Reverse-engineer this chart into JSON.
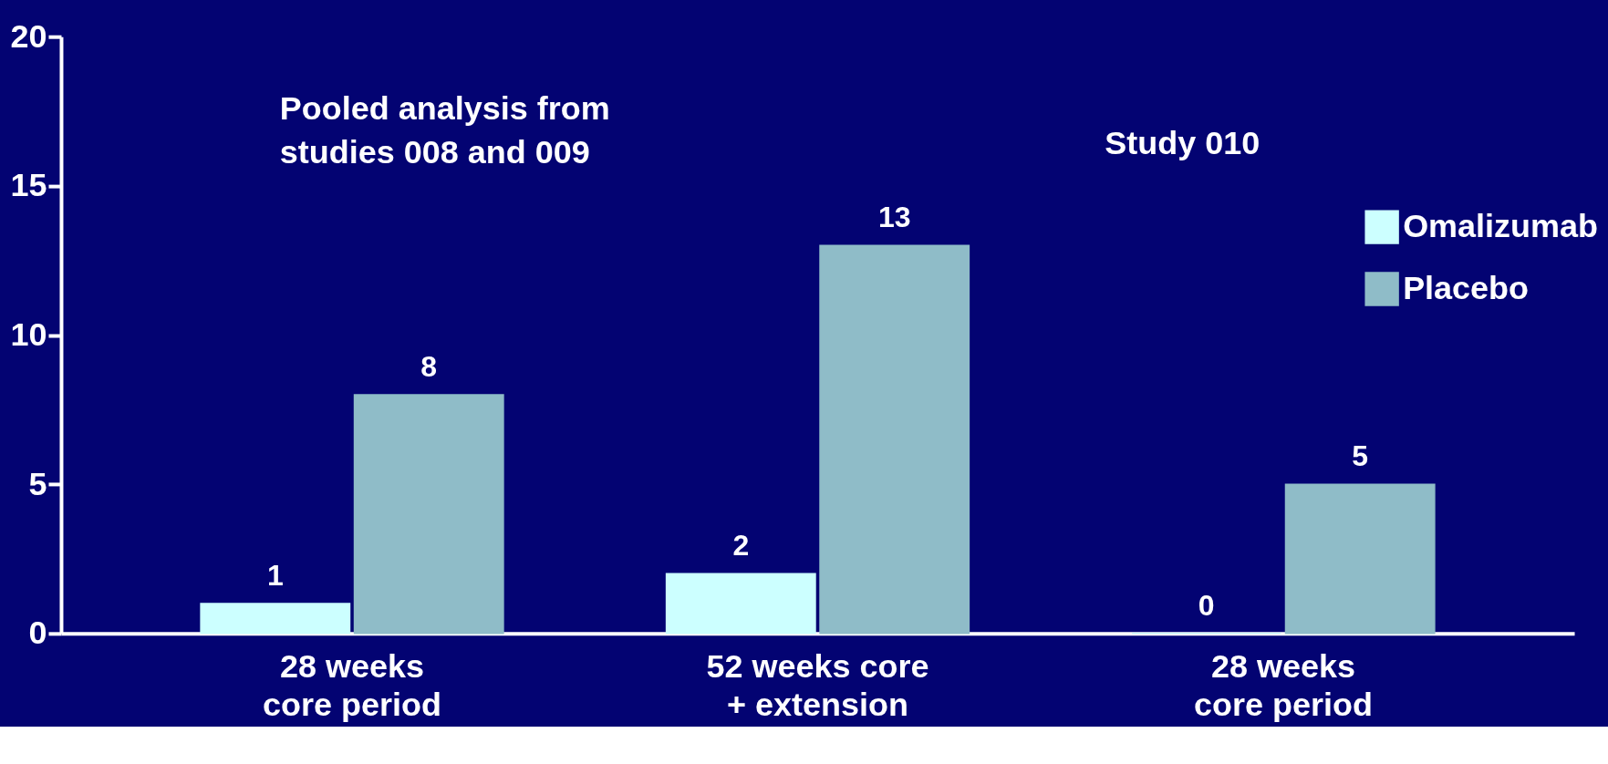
{
  "chart_data": {
    "type": "bar",
    "categories": [
      "28 weeks\ncore period",
      "52 weeks core\n+ extension",
      "28 weeks\ncore period"
    ],
    "series": [
      {
        "name": "Omalizumab",
        "color": "#ccffff",
        "values": [
          1,
          2,
          0
        ]
      },
      {
        "name": "Placebo",
        "color": "#8fbcc8",
        "values": [
          8,
          13,
          5
        ]
      }
    ],
    "ylim": [
      0,
      20
    ],
    "yticks": [
      0,
      5,
      10,
      15,
      20
    ],
    "data_labels": true,
    "grid": false,
    "legend": "top right",
    "annotations": [
      "Pooled analysis from\nstudies 008 and 009",
      "Study 010"
    ]
  }
}
